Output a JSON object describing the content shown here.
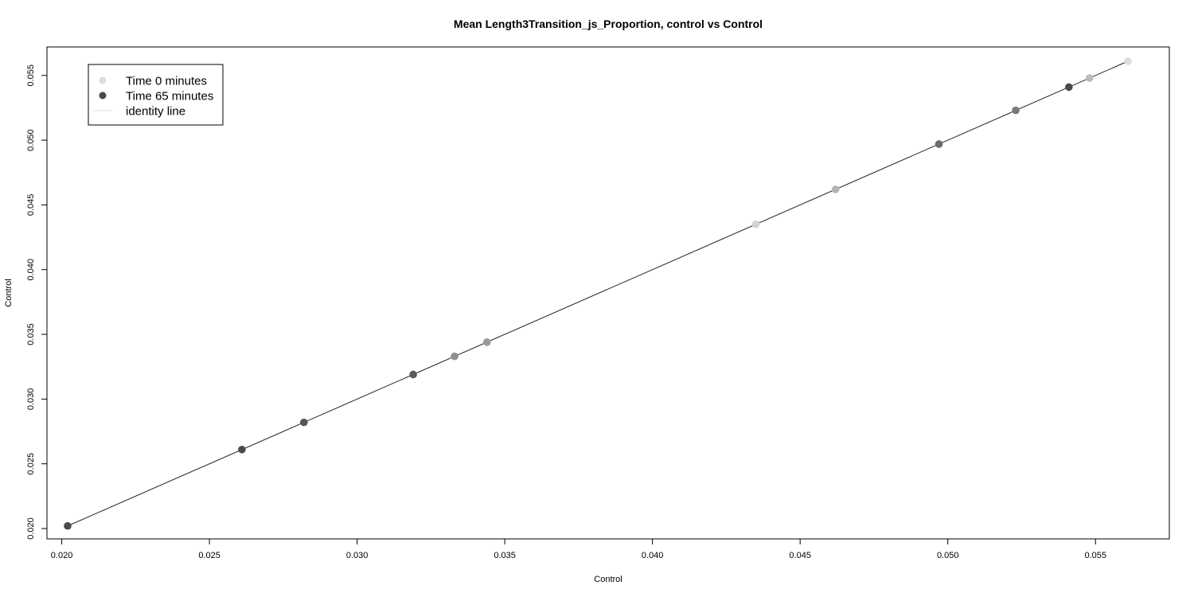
{
  "chart_data": {
    "type": "scatter",
    "title": "Mean Length3Transition_js_Proportion, control vs Control",
    "xlabel": "Control",
    "ylabel": "Control",
    "xlim": [
      0.0195,
      0.0575
    ],
    "ylim": [
      0.0192,
      0.0572
    ],
    "x_ticks": [
      "0.020",
      "0.025",
      "0.030",
      "0.035",
      "0.040",
      "0.045",
      "0.050",
      "0.055"
    ],
    "y_ticks": [
      "0.020",
      "0.025",
      "0.030",
      "0.035",
      "0.040",
      "0.045",
      "0.050",
      "0.055"
    ],
    "grid": false,
    "legend_position": "top-left",
    "legend": [
      {
        "label": "Time 0 minutes",
        "kind": "point",
        "color": "#dddddd"
      },
      {
        "label": "Time 65 minutes",
        "kind": "point",
        "color": "#4a4a4a"
      },
      {
        "label": "identity line",
        "kind": "line",
        "color": "#dddddd"
      }
    ],
    "identity_line": {
      "from": 0.0202,
      "to": 0.056,
      "color": "#222222"
    },
    "points": [
      {
        "x": 0.0202,
        "y": 0.0202,
        "color": "#4a4a4a"
      },
      {
        "x": 0.0261,
        "y": 0.0261,
        "color": "#4a4a4a"
      },
      {
        "x": 0.0282,
        "y": 0.0282,
        "color": "#555555"
      },
      {
        "x": 0.0319,
        "y": 0.0319,
        "color": "#5a5a5a"
      },
      {
        "x": 0.0333,
        "y": 0.0333,
        "color": "#8f8f8f"
      },
      {
        "x": 0.0344,
        "y": 0.0344,
        "color": "#9a9a9a"
      },
      {
        "x": 0.0435,
        "y": 0.0435,
        "color": "#d4d4d4"
      },
      {
        "x": 0.0462,
        "y": 0.0462,
        "color": "#b5b5b5"
      },
      {
        "x": 0.0497,
        "y": 0.0497,
        "color": "#6a6a6a"
      },
      {
        "x": 0.0523,
        "y": 0.0523,
        "color": "#7a7a7a"
      },
      {
        "x": 0.0541,
        "y": 0.0541,
        "color": "#4a4a4a"
      },
      {
        "x": 0.0548,
        "y": 0.0548,
        "color": "#bbbbbb"
      },
      {
        "x": 0.0561,
        "y": 0.0561,
        "color": "#dddddd"
      }
    ]
  }
}
